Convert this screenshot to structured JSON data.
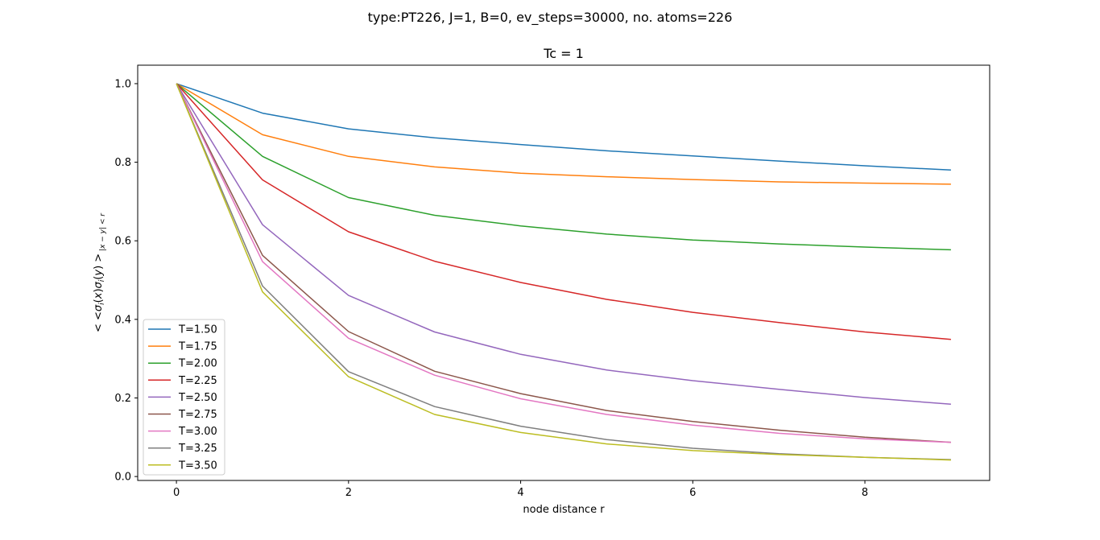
{
  "figure": {
    "suptitle": "type:PT226, J=1, B=0, ev_steps=30000, no. atoms=226"
  },
  "chart_data": {
    "type": "line",
    "title": "Tc = 1",
    "xlabel": "node distance r",
    "ylabel": "< <σ_i(x)σ_i(y) >_{|x−y|<r}",
    "xlim": [
      -0.45,
      9.45
    ],
    "ylim": [
      -0.01,
      1.047
    ],
    "xticks": [
      0,
      2,
      4,
      6,
      8
    ],
    "yticks": [
      0.0,
      0.2,
      0.4,
      0.6,
      0.8,
      1.0
    ],
    "xtick_labels": [
      "0",
      "2",
      "4",
      "6",
      "8"
    ],
    "ytick_labels": [
      "0.0",
      "0.2",
      "0.4",
      "0.6",
      "0.8",
      "1.0"
    ],
    "grid": false,
    "legend_position": "lower-left",
    "x": [
      0,
      1,
      2,
      3,
      4,
      5,
      6,
      7,
      8,
      9
    ],
    "series": [
      {
        "name": "T=1.50",
        "color": "#1f77b4",
        "values": [
          1.0,
          0.925,
          0.885,
          0.862,
          0.845,
          0.829,
          0.816,
          0.803,
          0.791,
          0.78
        ]
      },
      {
        "name": "T=1.75",
        "color": "#ff7f0e",
        "values": [
          1.0,
          0.87,
          0.815,
          0.788,
          0.772,
          0.763,
          0.756,
          0.75,
          0.747,
          0.744
        ]
      },
      {
        "name": "T=2.00",
        "color": "#2ca02c",
        "values": [
          1.0,
          0.815,
          0.71,
          0.665,
          0.638,
          0.617,
          0.602,
          0.592,
          0.584,
          0.577
        ]
      },
      {
        "name": "T=2.25",
        "color": "#d62728",
        "values": [
          1.0,
          0.755,
          0.623,
          0.548,
          0.494,
          0.451,
          0.418,
          0.392,
          0.368,
          0.349
        ]
      },
      {
        "name": "T=2.50",
        "color": "#9467bd",
        "values": [
          1.0,
          0.641,
          0.461,
          0.368,
          0.311,
          0.271,
          0.244,
          0.222,
          0.201,
          0.184
        ]
      },
      {
        "name": "T=2.75",
        "color": "#8c564b",
        "values": [
          1.0,
          0.563,
          0.369,
          0.268,
          0.211,
          0.168,
          0.14,
          0.118,
          0.1,
          0.087
        ]
      },
      {
        "name": "T=3.00",
        "color": "#e377c2",
        "values": [
          1.0,
          0.547,
          0.352,
          0.258,
          0.198,
          0.158,
          0.131,
          0.11,
          0.096,
          0.087
        ]
      },
      {
        "name": "T=3.25",
        "color": "#7f7f7f",
        "values": [
          1.0,
          0.485,
          0.267,
          0.178,
          0.128,
          0.094,
          0.072,
          0.058,
          0.049,
          0.043
        ]
      },
      {
        "name": "T=3.50",
        "color": "#bcbd22",
        "values": [
          1.0,
          0.47,
          0.254,
          0.158,
          0.112,
          0.083,
          0.066,
          0.056,
          0.049,
          0.042
        ]
      }
    ]
  }
}
